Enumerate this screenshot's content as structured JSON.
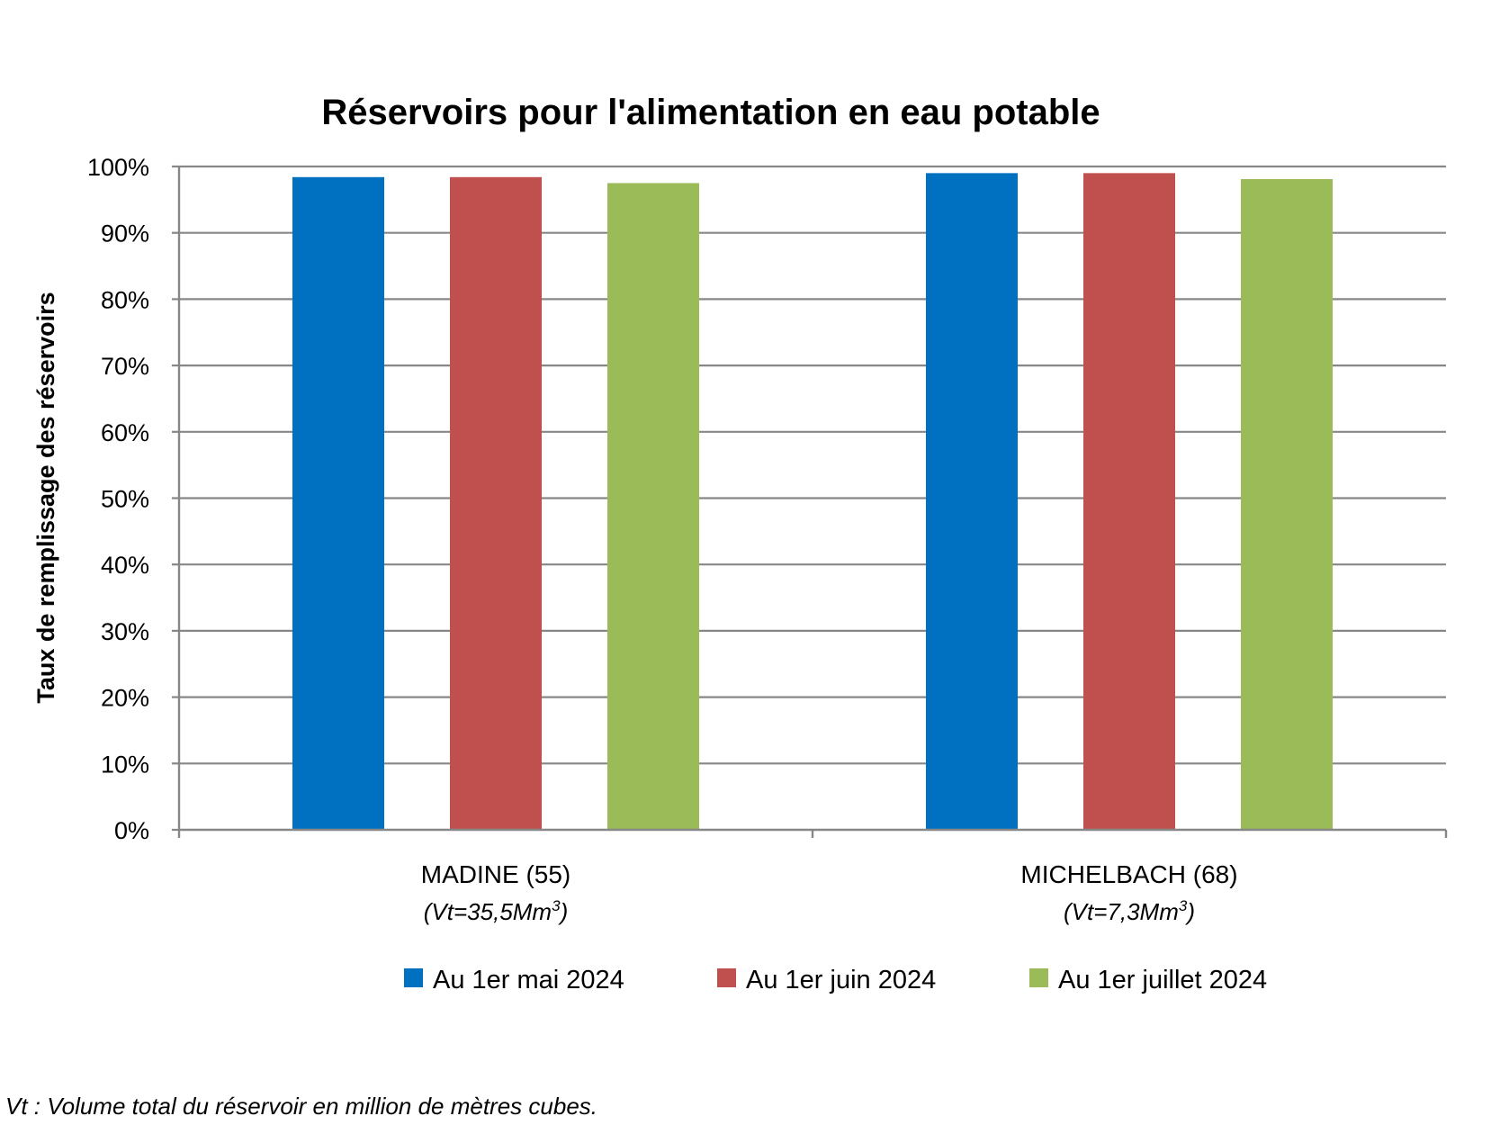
{
  "chart_data": {
    "type": "bar",
    "title": "Réservoirs pour l'alimentation en eau potable",
    "ylabel": "Taux de remplissage des réservoirs",
    "xlabel": "",
    "ylim": [
      0,
      100
    ],
    "y_ticks": [
      "0%",
      "10%",
      "20%",
      "30%",
      "40%",
      "50%",
      "60%",
      "70%",
      "80%",
      "90%",
      "100%"
    ],
    "grid": true,
    "legend_position": "bottom",
    "categories": [
      {
        "name": "MADINE (55)",
        "sub_prefix": "(Vt=35,5Mm",
        "sup": "3",
        "sub_suffix": ")"
      },
      {
        "name": "MICHELBACH (68)",
        "sub_prefix": "(Vt=7,3Mm",
        "sup": "3",
        "sub_suffix": ")"
      }
    ],
    "series": [
      {
        "name": "Au 1er mai 2024",
        "color": "#0070C0",
        "values": [
          98.4,
          99.0
        ]
      },
      {
        "name": "Au 1er juin 2024",
        "color": "#C0504D",
        "values": [
          98.4,
          99.0
        ]
      },
      {
        "name": "Au 1er juillet 2024",
        "color": "#9BBB59",
        "values": [
          97.5,
          98.1
        ]
      }
    ]
  },
  "footnote": "Vt : Volume total du réservoir en million de mètres cubes."
}
